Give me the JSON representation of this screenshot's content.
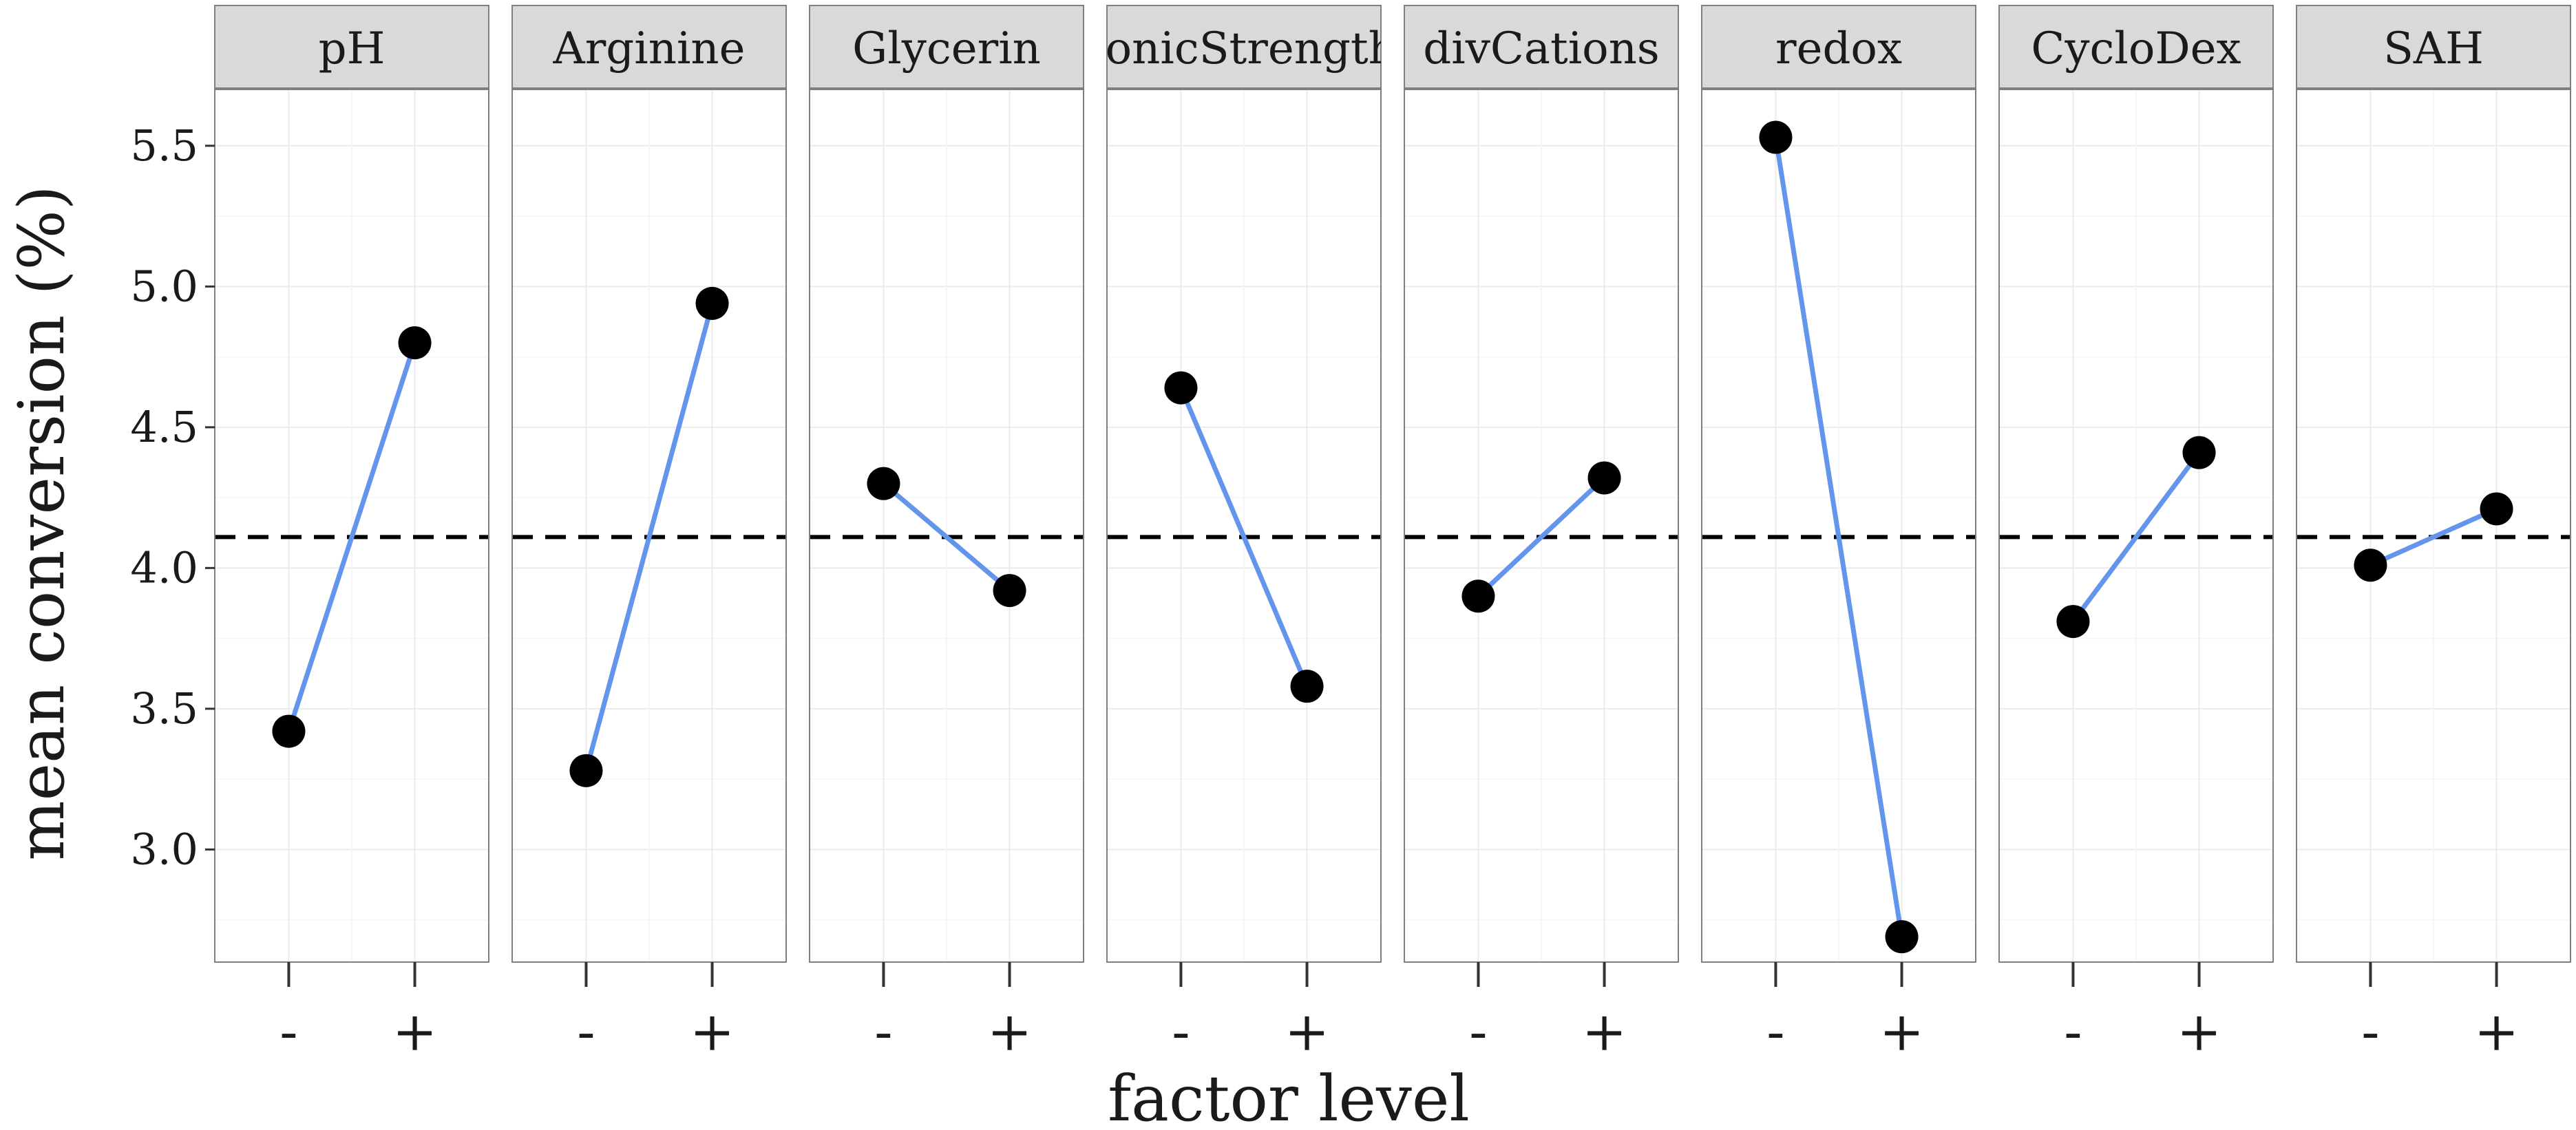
{
  "chart_data": {
    "type": "line",
    "title": "",
    "xlabel": "factor level",
    "ylabel": "mean conversion (%)",
    "ylim": [
      2.6,
      5.7
    ],
    "yticks": [
      3.0,
      3.5,
      4.0,
      4.5,
      5.0,
      5.5
    ],
    "ytick_labels": [
      "3.0",
      "3.5",
      "4.0",
      "4.5",
      "5.0",
      "5.5"
    ],
    "levels": [
      "-",
      "+"
    ],
    "reference_line": 4.11,
    "grid": true,
    "facets": [
      {
        "name": "pH",
        "values": [
          3.42,
          4.8
        ]
      },
      {
        "name": "Arginine",
        "values": [
          3.28,
          4.94
        ]
      },
      {
        "name": "Glycerin",
        "values": [
          4.3,
          3.92
        ]
      },
      {
        "name": "ionicStrength",
        "values": [
          4.64,
          3.58
        ]
      },
      {
        "name": "divCations",
        "values": [
          3.9,
          4.32
        ]
      },
      {
        "name": "redox",
        "values": [
          5.53,
          2.69
        ]
      },
      {
        "name": "CycloDex",
        "values": [
          3.81,
          4.41
        ]
      },
      {
        "name": "SAH",
        "values": [
          4.01,
          4.21
        ]
      }
    ]
  },
  "colors": {
    "line": "#6495ED",
    "point": "#000000",
    "strip_bg": "#D9D9D9",
    "panel_border": "#7f7f7f",
    "grid": "#ebebeb",
    "reference": "#000000"
  }
}
